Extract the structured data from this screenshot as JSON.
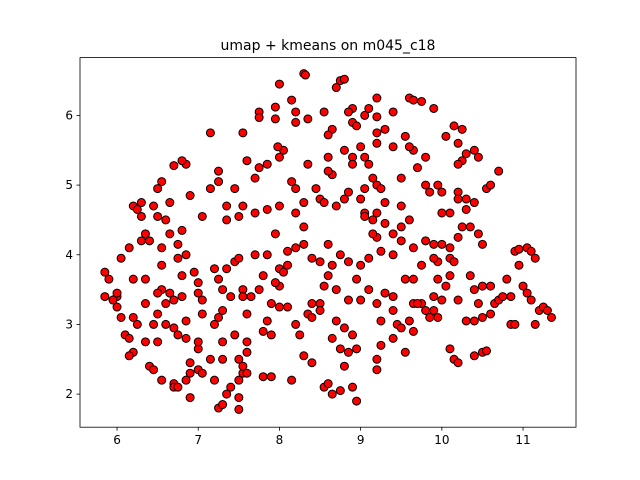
{
  "chart_data": {
    "type": "scatter",
    "title": "umap + kmeans on m045_c18",
    "color": "#ff0000",
    "edgecolor": "#000000",
    "xlim": [
      5.544,
      11.652
    ],
    "ylim": [
      1.525,
      6.83
    ],
    "xticks": [
      6,
      7,
      8,
      9,
      10,
      11
    ],
    "yticks": [
      2,
      3,
      4,
      5,
      6
    ],
    "x": [
      8.3,
      8.32,
      8.0,
      8.75,
      8.8,
      8.7,
      8.15,
      7.95,
      7.75,
      7.75,
      8.2,
      8.55,
      8.9,
      8.85,
      8.9,
      9.05,
      9.1,
      9.2,
      9.2,
      9.4,
      9.6,
      9.65,
      9.75,
      9.9,
      10.05,
      9.3,
      9.2,
      8.95,
      8.65,
      8.6,
      8.35,
      8.2,
      7.95,
      7.55,
      7.15,
      9.55,
      9.65,
      9.7,
      9.8,
      9.6,
      9.2,
      9.0,
      8.8,
      8.9,
      9.05,
      8.6,
      8.35,
      8.05,
      7.98,
      8.0,
      7.85,
      7.7,
      7.6,
      7.75,
      7.25,
      7.25,
      7.15,
      6.85,
      6.8,
      6.7,
      6.55,
      6.5,
      6.45,
      6.5,
      6.6,
      6.2,
      6.25,
      6.3,
      6.3,
      6.35,
      6.3,
      6.4,
      6.15,
      6.05,
      6.55,
      6.55,
      6.75,
      6.8,
      6.85,
      6.75,
      6.65,
      7.05,
      6.65,
      6.9,
      7.45,
      7.55,
      7.35,
      7.5,
      7.35,
      7.7,
      7.85,
      8.0,
      8.3,
      8.2,
      8.3,
      8.5,
      8.55,
      8.7,
      8.8,
      8.45,
      8.2,
      8.15,
      8.65,
      8.6,
      8.9,
      9.1,
      9.15,
      9.2,
      9.25,
      9.3,
      9.2,
      9.05,
      9.15,
      9.3,
      9.4,
      9.2,
      9.15,
      9.05,
      9.5,
      9.6,
      9.5,
      9.5,
      9.8,
      9.85,
      9.95,
      10.0,
      10.2,
      10.2,
      10.1,
      10.0,
      10.3,
      10.4,
      10.3,
      10.25,
      10.35,
      10.45,
      10.5,
      10.55,
      10.6,
      10.7,
      10.4,
      10.45,
      10.3,
      10.25,
      10.2,
      10.15,
      10.25,
      10.2,
      9.4,
      9.05,
      8.85,
      9.0,
      9.8,
      9.9,
      10.0,
      10.1,
      10.2,
      10.1,
      9.95,
      9.65,
      9.5,
      9.4,
      9.25,
      9.1,
      9.0,
      8.85,
      8.75,
      8.6,
      8.65,
      8.4,
      8.5,
      8.3,
      8.2,
      8.1,
      8.1,
      8.0,
      8.0,
      8.05,
      7.8,
      7.75,
      7.55,
      7.55,
      7.4,
      7.3,
      7.25,
      7.35,
      7.45,
      7.5,
      7.7,
      7.85,
      7.95,
      7.2,
      7.0,
      7.0,
      7.05,
      6.95,
      6.8,
      6.65,
      6.7,
      6.8,
      6.55,
      6.5,
      6.35,
      6.5,
      6.6,
      6.45,
      6.2,
      6.25,
      6.05,
      6.0,
      6.0,
      6.0,
      5.85,
      5.9,
      5.85,
      5.95,
      6.2,
      6.1,
      6.15,
      6.2,
      6.15,
      6.35,
      6.4,
      6.45,
      6.55,
      6.7,
      6.7,
      6.75,
      6.85,
      6.9,
      6.9,
      7.0,
      7.05,
      6.9,
      7.2,
      7.25,
      7.3,
      7.35,
      7.4,
      7.5,
      7.5,
      7.5,
      7.55,
      7.5,
      7.55,
      7.6,
      7.3,
      7.15,
      7.3,
      7.45,
      7.6,
      7.6,
      7.85,
      7.8,
      7.9,
      7.6,
      7.8,
      7.9,
      8.15,
      8.3,
      8.4,
      8.55,
      8.6,
      8.65,
      8.75,
      8.9,
      8.95,
      8.8,
      8.75,
      8.85,
      8.95,
      8.8,
      8.9,
      9.2,
      9.2,
      9.25,
      9.4,
      9.45,
      9.5,
      9.55,
      9.6,
      9.65,
      9.75,
      9.8,
      9.85,
      9.9,
      9.95,
      9.9,
      9.95,
      10.0,
      10.05,
      10.1,
      10.2,
      10.1,
      10.15,
      10.2,
      10.4,
      10.5,
      10.55,
      10.3,
      10.4,
      10.5,
      10.6,
      10.65,
      10.6,
      10.5,
      10.4,
      10.35,
      10.45,
      10.7,
      10.75,
      10.8,
      10.85,
      10.85,
      10.9,
      10.9,
      10.95,
      11.05,
      11.1,
      11.15,
      10.95,
      11.0,
      11.05,
      11.1,
      11.2,
      11.25,
      11.15,
      11.3,
      11.35,
      9.4,
      9.3,
      9.2,
      9.1,
      9.0,
      8.95,
      8.85,
      8.7,
      8.6,
      8.55,
      8.4,
      8.35,
      8.2,
      8.1,
      8.0,
      7.9,
      7.95,
      7.65,
      8.5,
      8.5,
      8.4,
      8.7,
      8.65,
      8.25,
      7.2,
      7.25,
      7.3,
      7.05,
      6.85,
      6.75,
      6.7,
      6.85,
      6.5,
      6.6,
      7.0,
      7.0,
      6.35,
      9.25,
      9.55,
      9.65,
      9.75,
      9.7,
      9.65,
      9.4,
      10.15,
      9.9
    ],
    "values": [
      6.6,
      6.58,
      6.45,
      6.5,
      6.52,
      6.4,
      6.22,
      6.12,
      6.05,
      5.97,
      6.05,
      6.05,
      6.1,
      6.05,
      5.9,
      6.0,
      6.1,
      6.25,
      5.98,
      6.05,
      6.25,
      6.22,
      6.2,
      6.1,
      5.7,
      5.8,
      5.75,
      5.85,
      5.8,
      5.72,
      5.95,
      5.9,
      5.95,
      5.75,
      5.75,
      5.7,
      5.5,
      5.25,
      5.4,
      5.55,
      5.6,
      5.55,
      5.5,
      5.4,
      5.4,
      5.4,
      5.3,
      5.5,
      5.55,
      5.4,
      5.3,
      5.1,
      5.35,
      5.25,
      5.2,
      5.05,
      4.95,
      5.3,
      5.35,
      5.28,
      5.05,
      4.95,
      4.7,
      4.55,
      4.5,
      4.7,
      4.65,
      4.75,
      4.55,
      4.3,
      4.2,
      4.2,
      4.1,
      3.95,
      4.1,
      3.85,
      4.15,
      4.35,
      4.0,
      3.95,
      4.3,
      4.55,
      4.75,
      4.85,
      4.95,
      4.7,
      4.7,
      4.55,
      4.5,
      4.6,
      4.65,
      4.7,
      4.75,
      4.6,
      4.4,
      4.8,
      4.75,
      4.7,
      4.8,
      4.95,
      4.95,
      5.05,
      5.15,
      5.2,
      5.3,
      5.3,
      5.1,
      5.0,
      4.95,
      4.75,
      4.6,
      4.6,
      4.5,
      4.45,
      4.3,
      4.25,
      4.3,
      4.55,
      4.7,
      4.5,
      4.4,
      5.1,
      5.0,
      4.9,
      5.0,
      4.9,
      4.9,
      4.8,
      4.6,
      4.6,
      4.8,
      4.75,
      4.65,
      4.4,
      4.4,
      4.3,
      4.15,
      4.95,
      5.0,
      5.2,
      5.5,
      5.4,
      5.45,
      5.35,
      5.3,
      5.85,
      5.8,
      5.6,
      5.55,
      4.95,
      4.9,
      4.8,
      4.2,
      4.15,
      4.15,
      4.1,
      4.25,
      3.95,
      3.9,
      4.1,
      4.2,
      4.0,
      4.05,
      3.95,
      3.85,
      3.9,
      4.0,
      4.15,
      3.85,
      3.95,
      3.9,
      4.15,
      4.1,
      4.05,
      3.85,
      3.8,
      3.55,
      3.75,
      3.7,
      3.5,
      3.5,
      3.4,
      3.4,
      3.5,
      3.65,
      3.8,
      3.9,
      3.95,
      4.0,
      4.0,
      4.3,
      3.8,
      3.6,
      3.45,
      3.35,
      3.75,
      3.7,
      3.45,
      3.35,
      3.4,
      3.5,
      3.45,
      3.3,
      3.15,
      3.3,
      3.0,
      3.1,
      3.0,
      3.1,
      3.25,
      3.4,
      3.45,
      3.75,
      3.65,
      3.4,
      3.35,
      3.65,
      2.85,
      2.8,
      2.6,
      2.55,
      2.75,
      2.4,
      2.35,
      2.2,
      2.15,
      2.1,
      2.1,
      2.2,
      2.3,
      2.45,
      2.35,
      2.3,
      1.95,
      2.2,
      1.8,
      1.85,
      2.0,
      2.1,
      1.95,
      1.78,
      2.2,
      2.3,
      2.5,
      2.4,
      2.6,
      2.5,
      2.5,
      2.75,
      2.85,
      2.75,
      3.15,
      3.05,
      2.9,
      2.85,
      2.3,
      2.25,
      2.25,
      2.2,
      2.55,
      2.45,
      2.1,
      2.15,
      2.0,
      2.05,
      2.1,
      1.9,
      2.4,
      2.65,
      2.6,
      2.65,
      2.95,
      2.85,
      2.5,
      2.35,
      2.7,
      2.8,
      3.0,
      2.95,
      2.6,
      3.05,
      3.3,
      3.3,
      3.2,
      3.1,
      3.2,
      3.1,
      3.4,
      3.65,
      3.35,
      3.55,
      3.7,
      3.35,
      2.65,
      2.5,
      2.45,
      2.55,
      2.6,
      2.62,
      3.05,
      3.05,
      3.1,
      3.15,
      3.3,
      3.55,
      3.55,
      3.5,
      3.7,
      3.3,
      3.35,
      3.4,
      3.65,
      3.4,
      3.0,
      3.0,
      4.05,
      4.08,
      4.1,
      4.05,
      3.95,
      3.85,
      3.55,
      3.45,
      3.35,
      3.2,
      3.25,
      3.0,
      3.2,
      3.1,
      3.4,
      3.45,
      3.3,
      3.5,
      3.35,
      3.65,
      3.35,
      3.5,
      3.7,
      3.55,
      3.3,
      3.15,
      3.0,
      3.25,
      3.25,
      3.3,
      3.6,
      3.4,
      3.3,
      3.2,
      3.1,
      3.05,
      2.8,
      2.85,
      3.0,
      3.1,
      3.2,
      3.15,
      3.05,
      2.85,
      2.95,
      2.8,
      2.75,
      3.0,
      2.65,
      2.75,
      3.65,
      3.05,
      3.65,
      3.65,
      3.85,
      3.3,
      2.9,
      3.2,
      3.9,
      3.95
    ]
  }
}
